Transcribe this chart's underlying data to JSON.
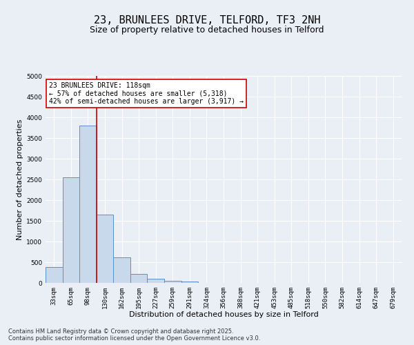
{
  "title": "23, BRUNLEES DRIVE, TELFORD, TF3 2NH",
  "subtitle": "Size of property relative to detached houses in Telford",
  "xlabel": "Distribution of detached houses by size in Telford",
  "ylabel": "Number of detached properties",
  "categories": [
    "33sqm",
    "65sqm",
    "98sqm",
    "130sqm",
    "162sqm",
    "195sqm",
    "227sqm",
    "259sqm",
    "291sqm",
    "324sqm",
    "356sqm",
    "388sqm",
    "421sqm",
    "453sqm",
    "485sqm",
    "518sqm",
    "550sqm",
    "582sqm",
    "614sqm",
    "647sqm",
    "679sqm"
  ],
  "values": [
    390,
    2550,
    3800,
    1650,
    620,
    220,
    100,
    55,
    30,
    0,
    0,
    0,
    0,
    0,
    0,
    0,
    0,
    0,
    0,
    0,
    0
  ],
  "bar_color": "#c9d9ec",
  "bar_edge_color": "#5b8fc9",
  "vline_index": 2.5,
  "vline_color": "#cc0000",
  "annotation_text": "23 BRUNLEES DRIVE: 118sqm\n← 57% of detached houses are smaller (5,318)\n42% of semi-detached houses are larger (3,917) →",
  "annotation_box_color": "#cc0000",
  "annotation_fill": "white",
  "ylim": [
    0,
    5000
  ],
  "yticks": [
    0,
    500,
    1000,
    1500,
    2000,
    2500,
    3000,
    3500,
    4000,
    4500,
    5000
  ],
  "background_color": "#eaeef5",
  "grid_color": "white",
  "footer_line1": "Contains HM Land Registry data © Crown copyright and database right 2025.",
  "footer_line2": "Contains public sector information licensed under the Open Government Licence v3.0.",
  "title_fontsize": 11,
  "subtitle_fontsize": 9,
  "xlabel_fontsize": 8,
  "ylabel_fontsize": 8,
  "tick_fontsize": 6.5,
  "annotation_fontsize": 7,
  "footer_fontsize": 6
}
